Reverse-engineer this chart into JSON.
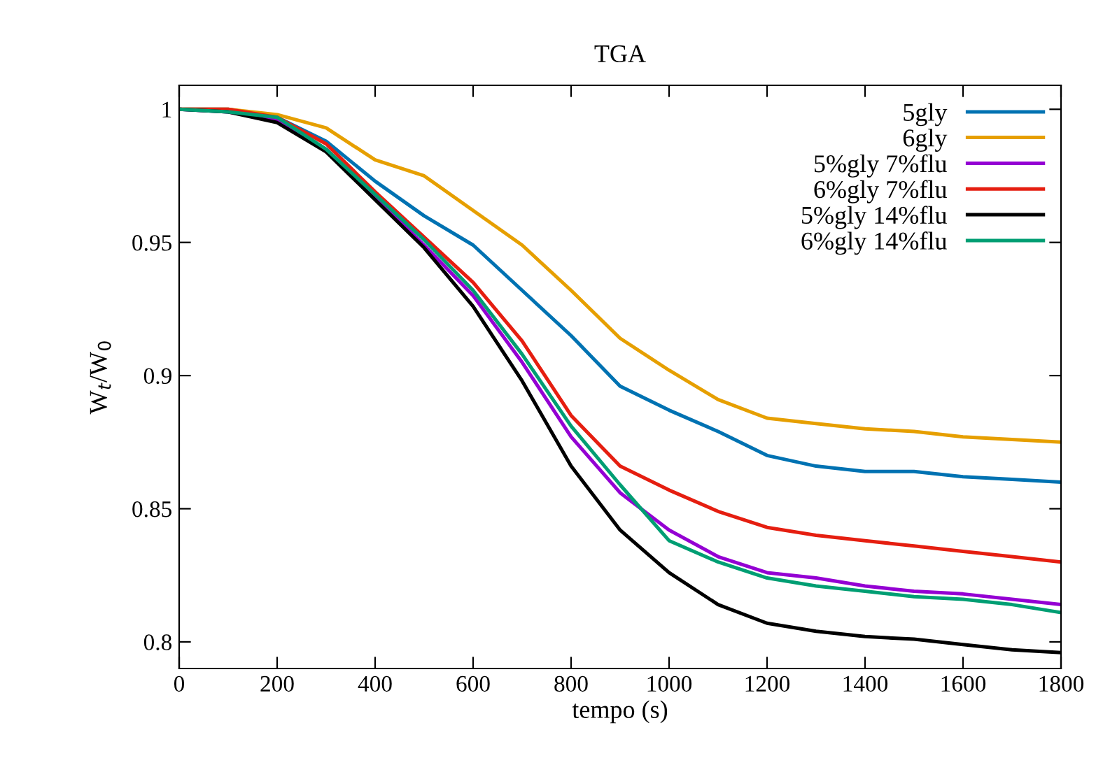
{
  "chart_data": {
    "type": "line",
    "title": "TGA",
    "xlabel": "tempo (s)",
    "ylabel": "W$_{t}$/W$_{0}$",
    "x": [
      0,
      100,
      200,
      300,
      400,
      500,
      600,
      700,
      800,
      900,
      1000,
      1100,
      1200,
      1300,
      1400,
      1500,
      1600,
      1700,
      1800
    ],
    "series": [
      {
        "name": "5gly",
        "color": "#0072b2",
        "values": [
          1.0,
          1.0,
          0.997,
          0.988,
          0.973,
          0.96,
          0.949,
          0.932,
          0.915,
          0.896,
          0.887,
          0.879,
          0.87,
          0.866,
          0.864,
          0.864,
          0.862,
          0.861,
          0.86
        ]
      },
      {
        "name": "6gly",
        "color": "#e69f00",
        "values": [
          1.0,
          1.0,
          0.998,
          0.993,
          0.981,
          0.975,
          0.962,
          0.949,
          0.932,
          0.914,
          0.902,
          0.891,
          0.884,
          0.882,
          0.88,
          0.879,
          0.877,
          0.876,
          0.875
        ]
      },
      {
        "name": "5%gly 7%flu",
        "color": "#9400d3",
        "values": [
          1.0,
          0.999,
          0.996,
          0.985,
          0.967,
          0.949,
          0.93,
          0.905,
          0.877,
          0.856,
          0.842,
          0.832,
          0.826,
          0.824,
          0.821,
          0.819,
          0.818,
          0.816,
          0.814
        ]
      },
      {
        "name": "6%gly 7%flu",
        "color": "#e51e10",
        "values": [
          1.0,
          1.0,
          0.997,
          0.987,
          0.969,
          0.952,
          0.935,
          0.913,
          0.885,
          0.866,
          0.857,
          0.849,
          0.843,
          0.84,
          0.838,
          0.836,
          0.834,
          0.832,
          0.83
        ]
      },
      {
        "name": "5%gly 14%flu",
        "color": "#000000",
        "values": [
          1.0,
          0.999,
          0.995,
          0.984,
          0.966,
          0.948,
          0.926,
          0.898,
          0.866,
          0.842,
          0.826,
          0.814,
          0.807,
          0.804,
          0.802,
          0.801,
          0.799,
          0.797,
          0.796
        ]
      },
      {
        "name": "6%gly 14%flu",
        "color": "#009e73",
        "values": [
          1.0,
          0.999,
          0.997,
          0.985,
          0.968,
          0.951,
          0.932,
          0.908,
          0.881,
          0.859,
          0.838,
          0.83,
          0.824,
          0.821,
          0.819,
          0.817,
          0.816,
          0.814,
          0.811
        ]
      }
    ],
    "xlim": [
      0,
      1800
    ],
    "xticks": [
      0,
      200,
      400,
      600,
      800,
      1000,
      1200,
      1400,
      1600,
      1800
    ],
    "ylim": [
      0.79,
      1.009
    ],
    "yticks": [
      {
        "value": 0.8,
        "label": "0.8"
      },
      {
        "value": 0.85,
        "label": "0.85"
      },
      {
        "value": 0.9,
        "label": "0.9"
      },
      {
        "value": 0.95,
        "label": "0.95"
      },
      {
        "value": 1,
        "label": "1"
      }
    ],
    "legend": "top right",
    "grid": false,
    "marker": "none",
    "line_style": "solid"
  }
}
